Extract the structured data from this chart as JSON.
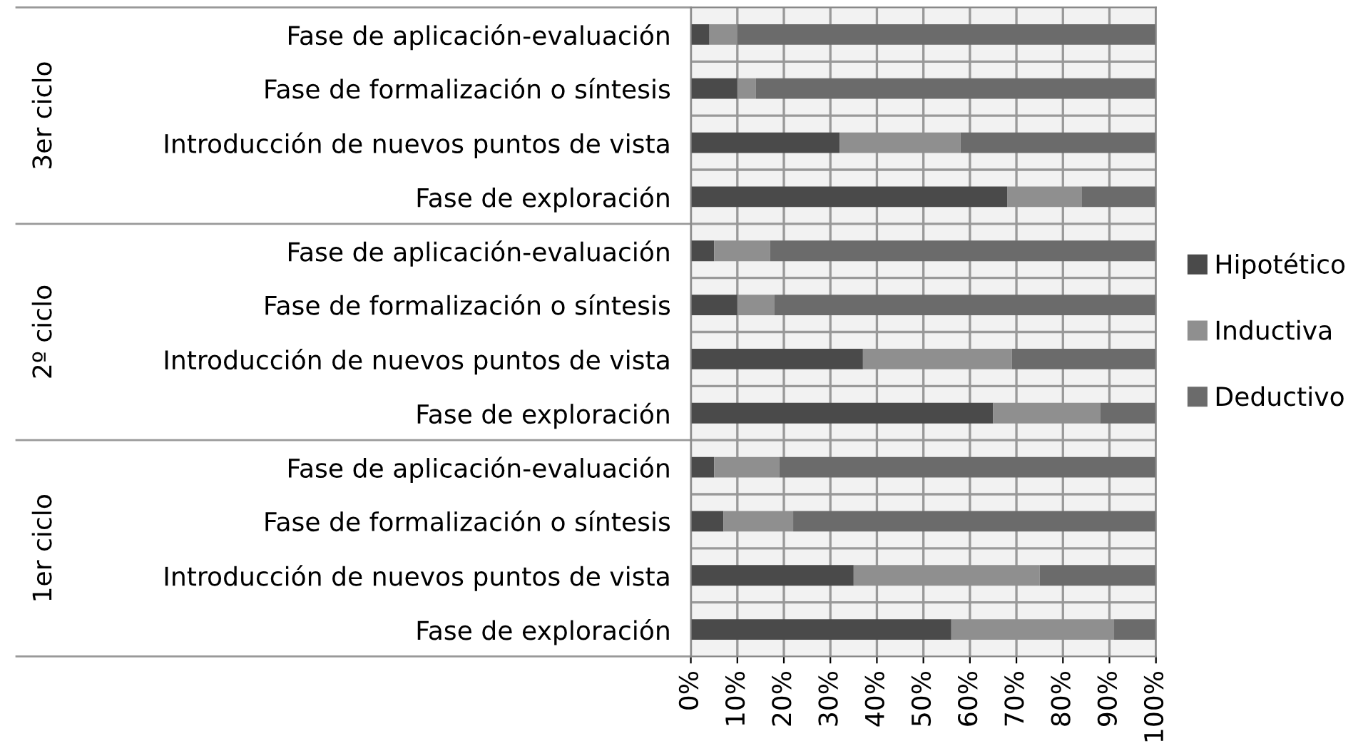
{
  "chart_data": {
    "type": "bar",
    "orientation": "horizontal",
    "stacked": true,
    "categories": [
      "Fase de aplicación-evaluación",
      "Fase de formalización o síntesis",
      "Introducción de nuevos puntos de vista",
      "Fase de exploración",
      "Fase de aplicación-evaluación",
      "Fase de formalización o síntesis",
      "Introducción de nuevos puntos de vista",
      "Fase de exploración",
      "Fase de aplicación-evaluación",
      "Fase de formalización o síntesis",
      "Introducción de nuevos puntos de vista",
      "Fase de exploración"
    ],
    "series": [
      {
        "name": "Hipotético",
        "color": "#4a4a4a",
        "values": [
          4,
          10,
          32,
          68,
          5,
          10,
          37,
          65,
          5,
          7,
          35,
          56
        ]
      },
      {
        "name": "Inductiva",
        "color": "#8f8f8f",
        "values": [
          6,
          4,
          26,
          16,
          12,
          8,
          32,
          23,
          14,
          15,
          40,
          35
        ]
      },
      {
        "name": "Deductivo",
        "color": "#6b6b6b",
        "values": [
          90,
          86,
          42,
          16,
          83,
          82,
          31,
          12,
          81,
          78,
          25,
          9
        ]
      }
    ],
    "annotations": [
      "3er ciclo",
      "2º ciclo",
      "1er ciclo"
    ],
    "xlim": [
      0,
      100
    ],
    "xticks": [
      {
        "value": 0,
        "label": "0%"
      },
      {
        "value": 10,
        "label": "10%"
      },
      {
        "value": 20,
        "label": "20%"
      },
      {
        "value": 30,
        "label": "30%"
      },
      {
        "value": 40,
        "label": "40%"
      },
      {
        "value": 50,
        "label": "50%"
      },
      {
        "value": 60,
        "label": "60%"
      },
      {
        "value": 70,
        "label": "70%"
      },
      {
        "value": 80,
        "label": "80%"
      },
      {
        "value": 90,
        "label": "90%"
      },
      {
        "value": 100,
        "label": "100%"
      }
    ],
    "grid": true,
    "legend": "right"
  }
}
